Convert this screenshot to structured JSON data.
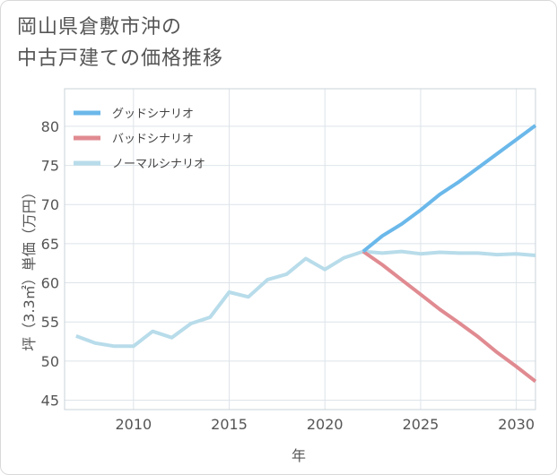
{
  "title_line1": "岡山県倉敷市沖の",
  "title_line2": "中古戸建ての価格推移",
  "chart_data": {
    "type": "line",
    "xlabel": "年",
    "ylabel": "坪（3.3㎡）単価（万円）",
    "xlim": [
      2006.4,
      2031
    ],
    "ylim": [
      43.8,
      84.8
    ],
    "xticks": [
      2010,
      2015,
      2020,
      2025,
      2030
    ],
    "yticks": [
      45,
      50,
      55,
      60,
      65,
      70,
      75,
      80
    ],
    "grid": true,
    "legend_position": "top-left",
    "series": [
      {
        "name": "グッドシナリオ",
        "color": "#6bb8ea",
        "x": [
          2022,
          2023,
          2024,
          2025,
          2026,
          2027,
          2028,
          2029,
          2030,
          2031
        ],
        "y": [
          64.0,
          66.0,
          67.5,
          69.3,
          71.3,
          72.9,
          74.7,
          76.5,
          78.3,
          80.1
        ]
      },
      {
        "name": "バッドシナリオ",
        "color": "#e08b91",
        "x": [
          2022,
          2023,
          2024,
          2025,
          2026,
          2027,
          2028,
          2029,
          2030,
          2031
        ],
        "y": [
          64.0,
          62.3,
          60.4,
          58.5,
          56.6,
          54.9,
          53.1,
          51.1,
          49.3,
          47.4
        ]
      },
      {
        "name": "ノーマルシナリオ",
        "color": "#b8dcea",
        "x": [
          2007,
          2008,
          2009,
          2010,
          2011,
          2012,
          2013,
          2014,
          2015,
          2016,
          2017,
          2018,
          2019,
          2020,
          2021,
          2022,
          2023,
          2024,
          2025,
          2026,
          2027,
          2028,
          2029,
          2030,
          2031
        ],
        "y": [
          53.2,
          52.3,
          51.9,
          51.9,
          53.8,
          53.0,
          54.8,
          55.6,
          58.8,
          58.2,
          60.4,
          61.1,
          63.1,
          61.7,
          63.2,
          64.0,
          63.8,
          64.0,
          63.7,
          63.9,
          63.8,
          63.8,
          63.6,
          63.7,
          63.5
        ]
      }
    ]
  }
}
